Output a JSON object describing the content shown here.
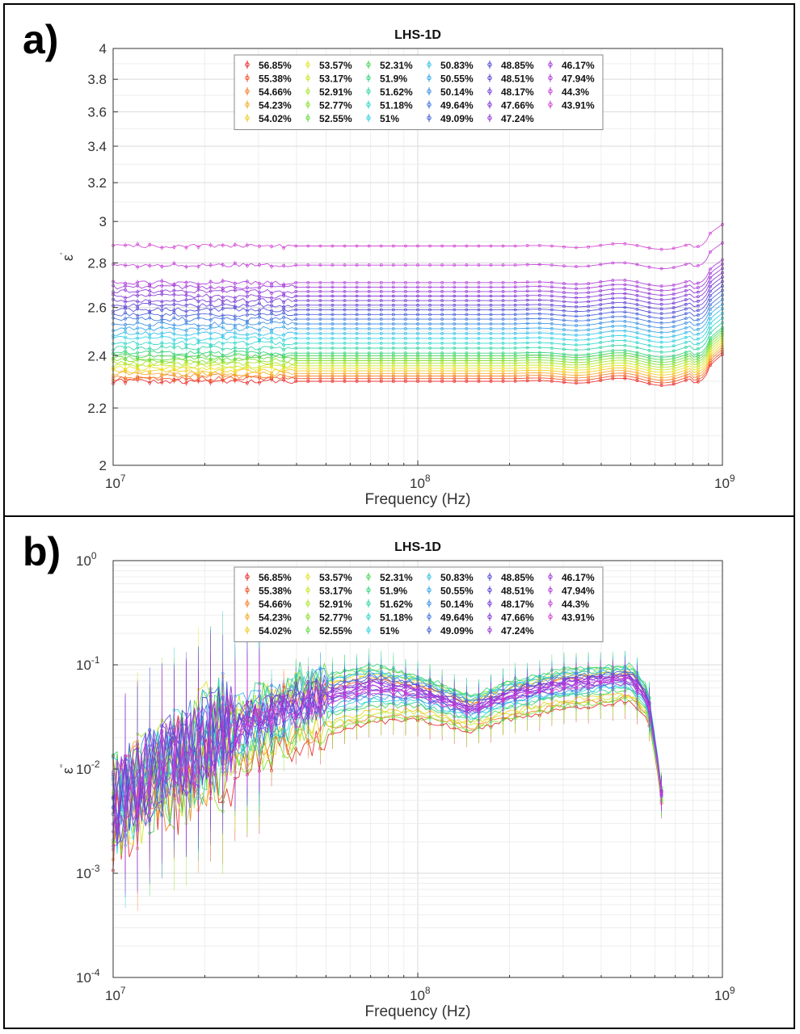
{
  "panels": [
    {
      "label": "a)",
      "chart_data": {
        "type": "scatter",
        "title": "LHS-1D",
        "xlabel": "Frequency (Hz)",
        "ylabel_main": "ε",
        "ylabel_sup": "'",
        "x_scale": "log",
        "y_scale": "log",
        "xlim": [
          10000000,
          1000000000
        ],
        "ylim": [
          2,
          4
        ],
        "x_ticks": [
          {
            "exp": "7"
          },
          {
            "exp": "8"
          },
          {
            "exp": "9"
          }
        ],
        "y_ticks": [
          "2",
          "2.2",
          "2.4",
          "2.6",
          "2.8",
          "3",
          "3.2",
          "3.4",
          "3.6",
          "3.8",
          "4"
        ],
        "grid": true,
        "legend_position": "top-center",
        "series": [
          {
            "name": "56.85%",
            "color": "#e82020",
            "level": 2.3
          },
          {
            "name": "55.38%",
            "color": "#ef4a1c",
            "level": 2.31
          },
          {
            "name": "54.66%",
            "color": "#f47a1e",
            "level": 2.32
          },
          {
            "name": "54.23%",
            "color": "#f5a623",
            "level": 2.33
          },
          {
            "name": "54.02%",
            "color": "#f2c919",
            "level": 2.34
          },
          {
            "name": "53.57%",
            "color": "#e6e01a",
            "level": 2.35
          },
          {
            "name": "53.17%",
            "color": "#c9e51d",
            "level": 2.36
          },
          {
            "name": "52.91%",
            "color": "#a8e324",
            "level": 2.37
          },
          {
            "name": "52.77%",
            "color": "#84de2a",
            "level": 2.38
          },
          {
            "name": "52.55%",
            "color": "#5fd93a",
            "level": 2.39
          },
          {
            "name": "52.31%",
            "color": "#3fd54e",
            "level": 2.4
          },
          {
            "name": "51.9%",
            "color": "#2fd27a",
            "level": 2.41
          },
          {
            "name": "51.62%",
            "color": "#29d3a3",
            "level": 2.43
          },
          {
            "name": "51.18%",
            "color": "#26d4c8",
            "level": 2.45
          },
          {
            "name": "51%",
            "color": "#23cfe2",
            "level": 2.47
          },
          {
            "name": "50.83%",
            "color": "#2abce8",
            "level": 2.49
          },
          {
            "name": "50.55%",
            "color": "#2ea3e6",
            "level": 2.51
          },
          {
            "name": "50.14%",
            "color": "#338ae2",
            "level": 2.53
          },
          {
            "name": "49.64%",
            "color": "#3a70dd",
            "level": 2.55
          },
          {
            "name": "49.09%",
            "color": "#4158d6",
            "level": 2.57
          },
          {
            "name": "48.85%",
            "color": "#4a45d4",
            "level": 2.59
          },
          {
            "name": "48.51%",
            "color": "#5a3ad3",
            "level": 2.61
          },
          {
            "name": "48.17%",
            "color": "#6d33d3",
            "level": 2.63
          },
          {
            "name": "47.66%",
            "color": "#7f30d4",
            "level": 2.65
          },
          {
            "name": "47.24%",
            "color": "#8e31d6",
            "level": 2.67
          },
          {
            "name": "46.17%",
            "color": "#9d33d8",
            "level": 2.69
          },
          {
            "name": "47.94%",
            "color": "#ae36d9",
            "level": 2.71
          },
          {
            "name": "44.3%",
            "color": "#c03ad6",
            "level": 2.79
          },
          {
            "name": "43.91%",
            "color": "#d23fd0",
            "level": 2.88
          }
        ]
      }
    },
    {
      "label": "b)",
      "chart_data": {
        "type": "scatter",
        "title": "LHS-1D",
        "xlabel": "Frequency (Hz)",
        "ylabel_main": "ε",
        "ylabel_sup": "''",
        "x_scale": "log",
        "y_scale": "log",
        "xlim": [
          10000000,
          1000000000
        ],
        "ylim": [
          0.0001,
          1
        ],
        "x_ticks": [
          {
            "exp": "7"
          },
          {
            "exp": "8"
          },
          {
            "exp": "9"
          }
        ],
        "y_ticks": [
          {
            "exp": "-4"
          },
          {
            "exp": "-3"
          },
          {
            "exp": "-2"
          },
          {
            "exp": "-1"
          },
          {
            "exp": "0"
          }
        ],
        "grid": true,
        "legend_position": "top-center",
        "curve_shape": {
          "x": [
            10000000,
            20000000,
            40000000,
            70000000,
            100000000,
            150000000,
            200000000,
            300000000,
            500000000,
            570000000,
            620000000,
            650000000
          ],
          "high_y": [
            0.006,
            0.03,
            0.07,
            0.1,
            0.08,
            0.05,
            0.07,
            0.09,
            0.1,
            0.06,
            0.01,
            0.003
          ],
          "low_y": [
            0.003,
            0.008,
            0.018,
            0.028,
            0.03,
            0.023,
            0.03,
            0.038,
            0.045,
            0.03,
            0.008,
            0.002
          ]
        },
        "series": [
          {
            "name": "56.85%",
            "color": "#e82020",
            "amp": 0.0
          },
          {
            "name": "55.38%",
            "color": "#ef4a1c",
            "amp": 0.75
          },
          {
            "name": "54.66%",
            "color": "#f47a1e",
            "amp": 0.1
          },
          {
            "name": "54.23%",
            "color": "#f5a623",
            "amp": 0.8
          },
          {
            "name": "54.02%",
            "color": "#f2c919",
            "amp": 0.2
          },
          {
            "name": "53.57%",
            "color": "#e6e01a",
            "amp": 0.85
          },
          {
            "name": "53.17%",
            "color": "#c9e51d",
            "amp": 0.15
          },
          {
            "name": "52.91%",
            "color": "#a8e324",
            "amp": 0.9
          },
          {
            "name": "52.77%",
            "color": "#84de2a",
            "amp": 0.05
          },
          {
            "name": "52.55%",
            "color": "#5fd93a",
            "amp": 0.95
          },
          {
            "name": "52.31%",
            "color": "#3fd54e",
            "amp": 0.3
          },
          {
            "name": "51.9%",
            "color": "#2fd27a",
            "amp": 1.0
          },
          {
            "name": "51.62%",
            "color": "#29d3a3",
            "amp": 0.35
          },
          {
            "name": "51.18%",
            "color": "#26d4c8",
            "amp": 0.92
          },
          {
            "name": "51%",
            "color": "#23cfe2",
            "amp": 0.4
          },
          {
            "name": "50.83%",
            "color": "#2abce8",
            "amp": 0.88
          },
          {
            "name": "50.55%",
            "color": "#2ea3e6",
            "amp": 0.45
          },
          {
            "name": "50.14%",
            "color": "#338ae2",
            "amp": 0.82
          },
          {
            "name": "49.64%",
            "color": "#3a70dd",
            "amp": 0.5
          },
          {
            "name": "49.09%",
            "color": "#4158d6",
            "amp": 0.78
          },
          {
            "name": "48.85%",
            "color": "#4a45d4",
            "amp": 0.55
          },
          {
            "name": "48.51%",
            "color": "#5a3ad3",
            "amp": 0.72
          },
          {
            "name": "48.17%",
            "color": "#6d33d3",
            "amp": 0.6
          },
          {
            "name": "47.66%",
            "color": "#7f30d4",
            "amp": 0.7
          },
          {
            "name": "47.24%",
            "color": "#8e31d6",
            "amp": 0.65
          },
          {
            "name": "46.17%",
            "color": "#9d33d8",
            "amp": 0.68
          },
          {
            "name": "47.94%",
            "color": "#ae36d9",
            "amp": 0.62
          },
          {
            "name": "44.3%",
            "color": "#c03ad6",
            "amp": 0.58
          },
          {
            "name": "43.91%",
            "color": "#d23fd0",
            "amp": 0.52
          }
        ]
      }
    }
  ]
}
